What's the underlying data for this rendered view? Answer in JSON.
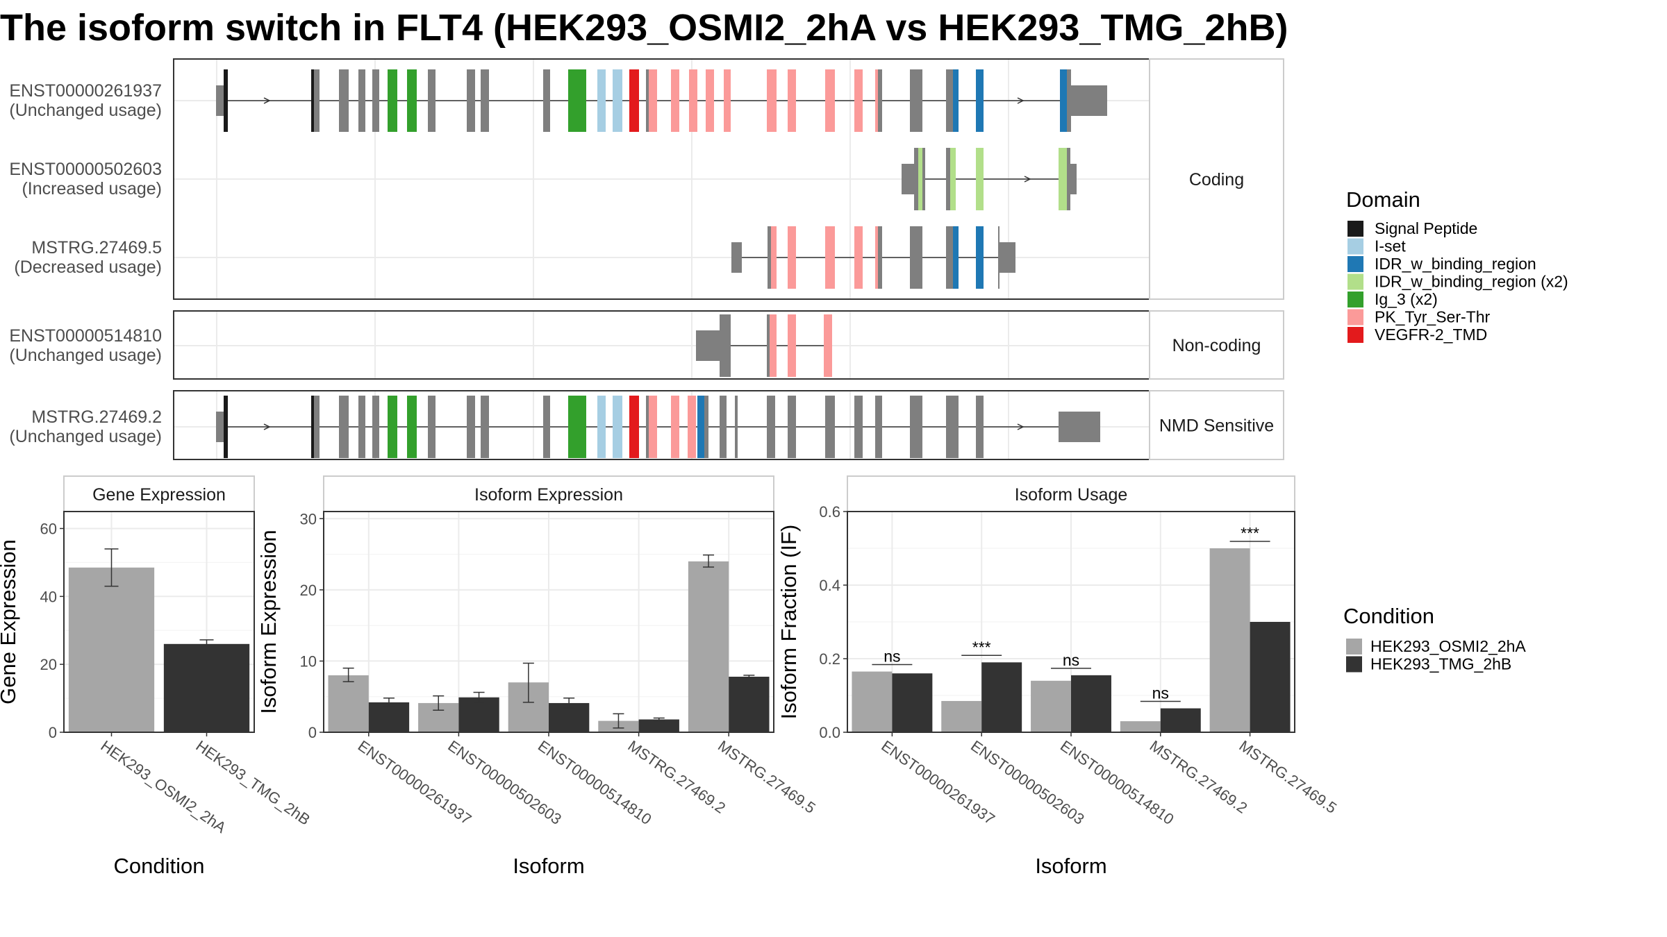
{
  "title": "The isoform switch in FLT4 (HEK293_OSMI2_2hA vs HEK293_TMG_2hB)",
  "colors": {
    "Signal Peptide": "#1a1a1a",
    "I-set": "#a6cee3",
    "IDR_w_binding_region": "#1f78b4",
    "IDR_w_binding_region (x2)": "#b2df8a",
    "Ig_3 (x2)": "#33a02c",
    "PK_Tyr_Ser-Thr": "#fb9a99",
    "VEGFR-2_TMD": "#e31a1c",
    "none": "#7f7f7f",
    "cond1": "#a6a6a6",
    "cond2": "#333333"
  },
  "structure": {
    "groups": [
      {
        "label": "Coding",
        "isoforms": [
          {
            "id": "ENST00000261937",
            "usage": "(Unchanged usage)"
          },
          {
            "id": "ENST00000502603",
            "usage": "(Increased usage)"
          },
          {
            "id": "MSTRG.27469.5",
            "usage": "(Decreased usage)"
          }
        ]
      },
      {
        "label": "Non-coding",
        "isoforms": [
          {
            "id": "ENST00000514810",
            "usage": "(Unchanged usage)"
          }
        ]
      },
      {
        "label": "NMD Sensitive",
        "isoforms": [
          {
            "id": "MSTRG.27469.2",
            "usage": "(Unchanged usage)"
          }
        ]
      }
    ]
  },
  "legend_domain": {
    "title": "Domain",
    "items": [
      "Signal Peptide",
      "I-set",
      "IDR_w_binding_region",
      "IDR_w_binding_region (x2)",
      "Ig_3 (x2)",
      "PK_Tyr_Ser-Thr",
      "VEGFR-2_TMD"
    ]
  },
  "legend_condition": {
    "title": "Condition",
    "items": [
      "HEK293_OSMI2_2hA",
      "HEK293_TMG_2hB"
    ]
  },
  "chart_data": [
    {
      "type": "bar",
      "title": "Gene Expression",
      "xlabel": "Condition",
      "ylabel": "Gene Expression",
      "categories": [
        "HEK293_OSMI2_2hA",
        "HEK293_TMG_2hB"
      ],
      "values": [
        48.5,
        26.0
      ],
      "error_low": [
        43.0,
        25.2
      ],
      "error_high": [
        54.0,
        27.2
      ],
      "ylim": [
        0,
        65
      ],
      "yticks": [
        0,
        20,
        40,
        60
      ]
    },
    {
      "type": "bar",
      "title": "Isoform Expression",
      "xlabel": "Isoform",
      "ylabel": "Isoform Expression",
      "categories": [
        "ENST00000261937",
        "ENST00000502603",
        "ENST00000514810",
        "MSTRG.27469.2",
        "MSTRG.27469.5"
      ],
      "series": [
        {
          "name": "HEK293_OSMI2_2hA",
          "values": [
            8.0,
            4.1,
            7.0,
            1.6,
            24.0
          ],
          "error_low": [
            7.1,
            3.1,
            4.2,
            0.6,
            23.2
          ],
          "error_high": [
            9.0,
            5.1,
            9.7,
            2.6,
            24.9
          ]
        },
        {
          "name": "HEK293_TMG_2hB",
          "values": [
            4.2,
            4.9,
            4.1,
            1.8,
            7.8
          ],
          "error_low": [
            3.6,
            4.2,
            3.4,
            1.6,
            7.6
          ],
          "error_high": [
            4.8,
            5.6,
            4.8,
            2.0,
            8.0
          ]
        }
      ],
      "ylim": [
        0,
        31
      ],
      "yticks": [
        0,
        10,
        20,
        30
      ]
    },
    {
      "type": "bar",
      "title": "Isoform Usage",
      "xlabel": "Isoform",
      "ylabel": "Isoform Fraction (IF)",
      "categories": [
        "ENST00000261937",
        "ENST00000502603",
        "ENST00000514810",
        "MSTRG.27469.2",
        "MSTRG.27469.5"
      ],
      "series": [
        {
          "name": "HEK293_OSMI2_2hA",
          "values": [
            0.165,
            0.085,
            0.14,
            0.03,
            0.5
          ]
        },
        {
          "name": "HEK293_TMG_2hB",
          "values": [
            0.16,
            0.19,
            0.155,
            0.065,
            0.3
          ]
        }
      ],
      "significance": [
        "ns",
        "***",
        "ns",
        "ns",
        "***"
      ],
      "ylim": [
        0,
        0.6
      ],
      "yticks": [
        "0.0",
        "0.2",
        "0.4",
        "0.6"
      ]
    }
  ]
}
